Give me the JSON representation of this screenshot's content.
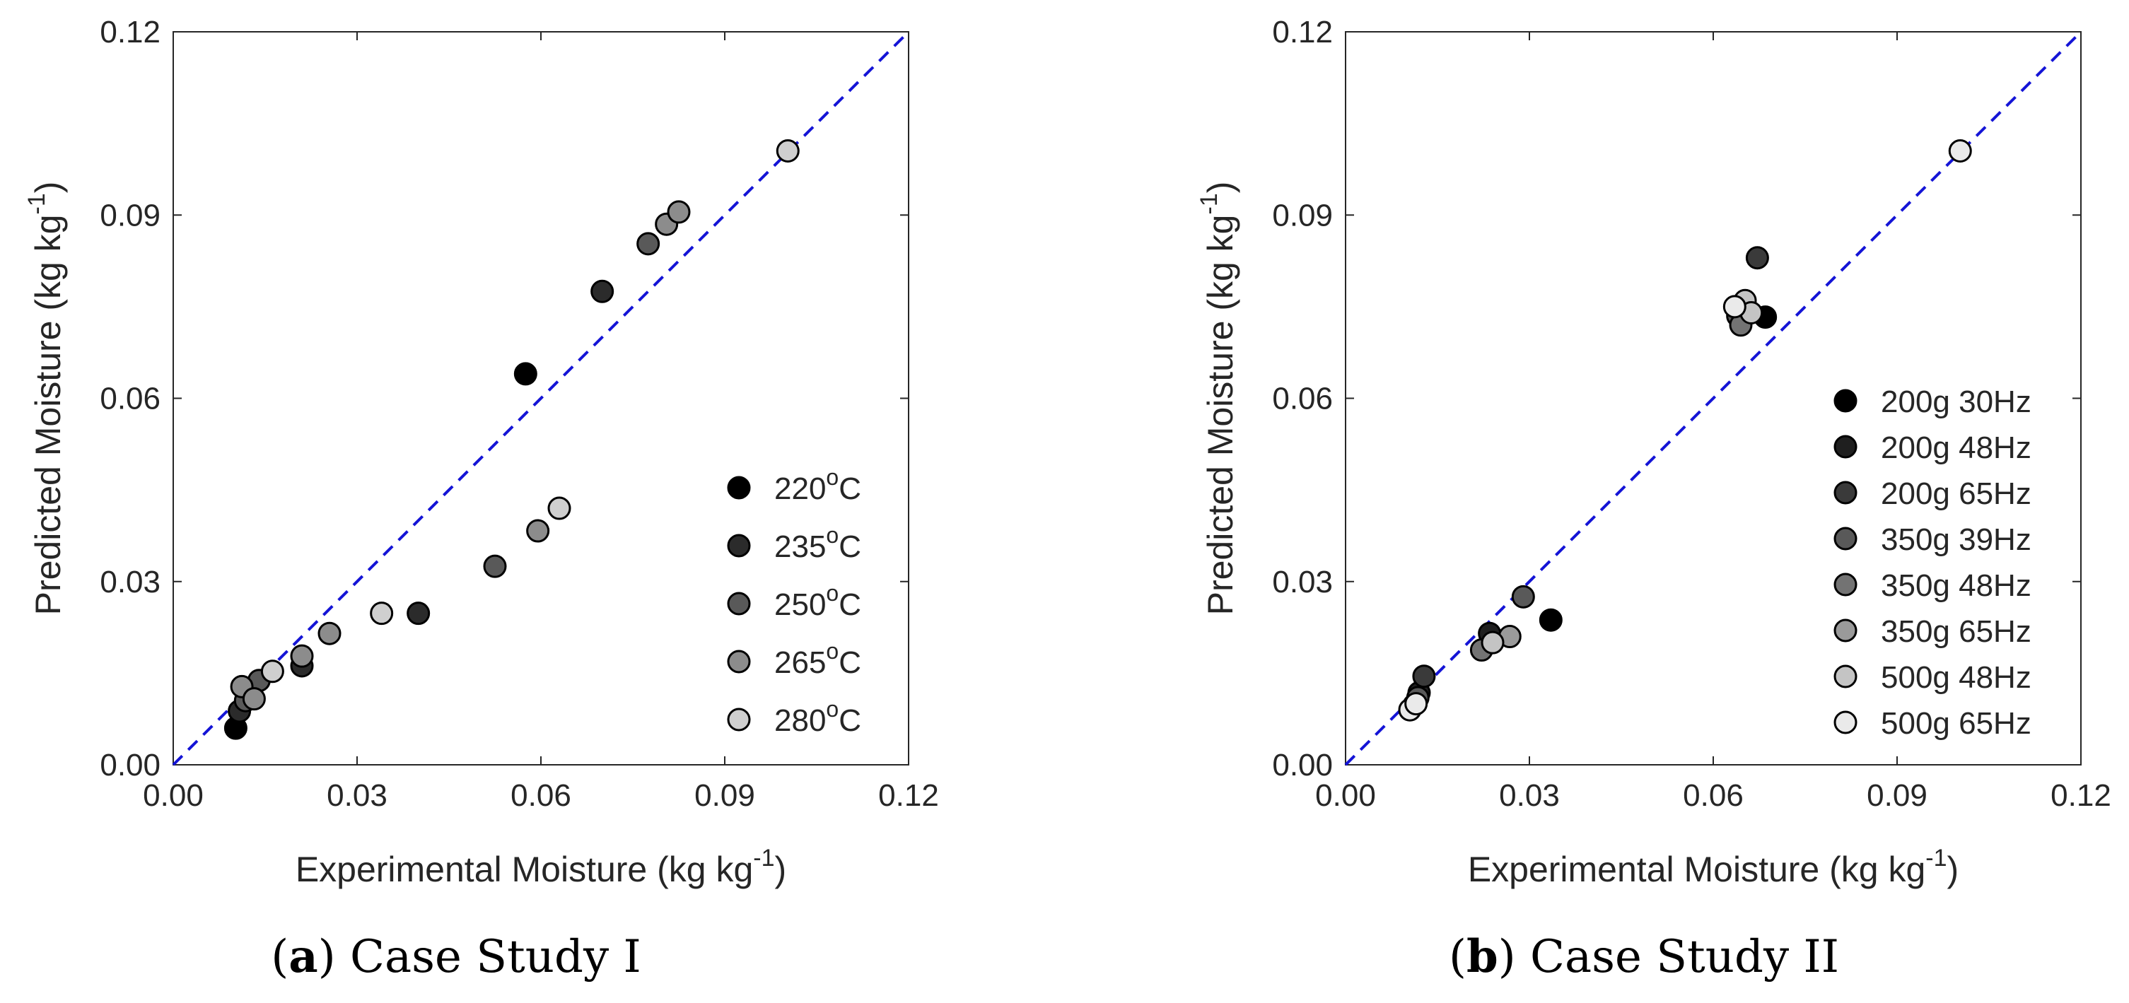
{
  "chart_data": [
    {
      "type": "scatter",
      "caption_letter": "a",
      "caption_text": "Case Study I",
      "xlabel": "Experimental Moisture (kg kg",
      "ylabel": "Predicted Moisture (kg kg",
      "unit_exp": "-1",
      "label_close": ")",
      "xlim": [
        0,
        0.12
      ],
      "ylim": [
        0,
        0.12
      ],
      "xticks": [
        "0.00",
        "0.03",
        "0.06",
        "0.09",
        "0.12"
      ],
      "yticks": [
        "0.00",
        "0.03",
        "0.06",
        "0.09",
        "0.12"
      ],
      "tick_values": [
        0,
        0.03,
        0.06,
        0.09,
        0.12
      ],
      "reference_line": {
        "from": [
          0,
          0
        ],
        "to": [
          0.12,
          0.12
        ],
        "style": "dashed",
        "color": "#1414d6"
      },
      "legend_position": "bottom-right",
      "series": [
        {
          "name": "220",
          "suffix": "C",
          "deg": "o",
          "color": "#000000",
          "x": [
            0.0102,
            0.0575
          ],
          "y": [
            0.006,
            0.064
          ]
        },
        {
          "name": "235",
          "suffix": "C",
          "deg": "o",
          "color": "#2b2b2b",
          "x": [
            0.0108,
            0.021,
            0.04,
            0.07
          ],
          "y": [
            0.0088,
            0.0162,
            0.0248,
            0.0775
          ]
        },
        {
          "name": "250",
          "suffix": "C",
          "deg": "o",
          "color": "#595959",
          "x": [
            0.0118,
            0.014,
            0.0525,
            0.0775
          ],
          "y": [
            0.0105,
            0.0138,
            0.0325,
            0.0853
          ]
        },
        {
          "name": "265",
          "suffix": "C",
          "deg": "o",
          "color": "#8c8c8c",
          "x": [
            0.0112,
            0.0132,
            0.021,
            0.0255,
            0.0595,
            0.0805,
            0.0825
          ],
          "y": [
            0.0128,
            0.0108,
            0.0178,
            0.0215,
            0.0383,
            0.0885,
            0.0905
          ]
        },
        {
          "name": "280",
          "suffix": "C",
          "deg": "o",
          "color": "#cfcfcf",
          "x": [
            0.0162,
            0.034,
            0.063,
            0.1003
          ],
          "y": [
            0.0153,
            0.0248,
            0.042,
            0.1005
          ]
        }
      ]
    },
    {
      "type": "scatter",
      "caption_letter": "b",
      "caption_text": "Case Study II",
      "xlabel": "Experimental Moisture (kg kg",
      "ylabel": "Predicted Moisture (kg kg",
      "unit_exp": "-1",
      "label_close": ")",
      "xlim": [
        0,
        0.12
      ],
      "ylim": [
        0,
        0.12
      ],
      "xticks": [
        "0.00",
        "0.03",
        "0.06",
        "0.09",
        "0.12"
      ],
      "yticks": [
        "0.00",
        "0.03",
        "0.06",
        "0.09",
        "0.12"
      ],
      "tick_values": [
        0,
        0.03,
        0.06,
        0.09,
        0.12
      ],
      "reference_line": {
        "from": [
          0,
          0
        ],
        "to": [
          0.12,
          0.12
        ],
        "style": "dashed",
        "color": "#1414d6"
      },
      "legend_position": "bottom-right",
      "series": [
        {
          "name": "200g 30Hz",
          "color": "#000000",
          "x": [
            0.0335,
            0.0685
          ],
          "y": [
            0.0237,
            0.0733
          ]
        },
        {
          "name": "200g 48Hz",
          "color": "#1f1f1f",
          "x": [
            0.012,
            0.0235
          ],
          "y": [
            0.0118,
            0.0215
          ]
        },
        {
          "name": "200g 65Hz",
          "color": "#3a3a3a",
          "x": [
            0.0128,
            0.0672
          ],
          "y": [
            0.0145,
            0.083
          ]
        },
        {
          "name": "350g 39Hz",
          "color": "#595959",
          "x": [
            0.0118,
            0.029,
            0.064
          ],
          "y": [
            0.011,
            0.0275,
            0.0735
          ]
        },
        {
          "name": "350g 48Hz",
          "color": "#737373",
          "x": [
            0.0222,
            0.0645
          ],
          "y": [
            0.0188,
            0.072
          ]
        },
        {
          "name": "350g 65Hz",
          "color": "#9a9a9a",
          "x": [
            0.0112,
            0.0268
          ],
          "y": [
            0.0098,
            0.021
          ]
        },
        {
          "name": "500g 48Hz",
          "color": "#c4c4c4",
          "x": [
            0.0652,
            0.0662,
            0.024
          ],
          "y": [
            0.076,
            0.074,
            0.02
          ]
        },
        {
          "name": "500g 65Hz",
          "color": "#eaeaea",
          "x": [
            0.0105,
            0.0115,
            0.0635,
            0.1003
          ],
          "y": [
            0.009,
            0.01,
            0.075,
            0.1005
          ]
        }
      ]
    }
  ]
}
